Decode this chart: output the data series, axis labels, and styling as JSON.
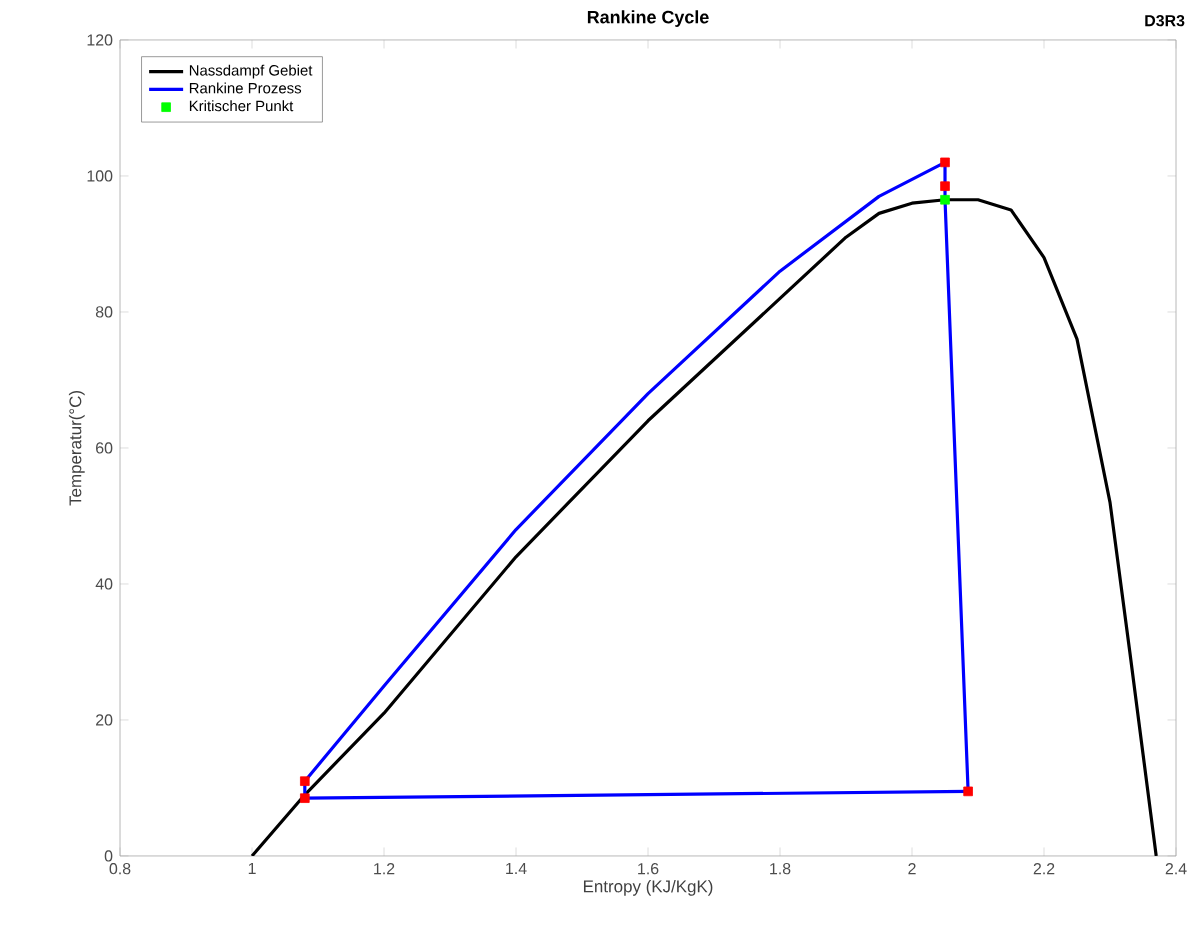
{
  "chart_data": {
    "type": "line",
    "title": "Rankine Cycle",
    "xlabel": "Entropy (KJ/KgK)",
    "ylabel": "Temperatur(°C)",
    "annotations": [
      "D3R3"
    ],
    "xlim": [
      0.8,
      2.4
    ],
    "ylim": [
      0,
      120
    ],
    "xticks": [
      0.8,
      1,
      1.2,
      1.4,
      1.6,
      1.8,
      2,
      2.2,
      2.4
    ],
    "yticks": [
      0,
      20,
      40,
      60,
      80,
      100,
      120
    ],
    "legend": "top left",
    "grid": false,
    "marker": "none",
    "line_style": "solid",
    "series": [
      {
        "name": "Nassdampf Gebiet",
        "color": "#000000",
        "x": [
          1.0,
          1.08,
          1.2,
          1.4,
          1.6,
          1.8,
          1.9,
          1.95,
          2.0,
          2.05,
          2.1,
          2.15,
          2.2,
          2.25,
          2.3,
          2.33,
          2.35,
          2.37
        ],
        "values": [
          0,
          9,
          21,
          44,
          64,
          82,
          91,
          94.5,
          96,
          96.5,
          96.5,
          95,
          88,
          76,
          52,
          30,
          15,
          0
        ]
      },
      {
        "name": "Rankine Prozess",
        "color": "#0000ff",
        "x": [
          1.08,
          1.08,
          1.2,
          1.4,
          1.6,
          1.8,
          1.95,
          2.05,
          2.05,
          2.085
        ],
        "values": [
          8.5,
          11,
          25,
          48,
          68,
          86,
          97,
          102,
          96.5,
          9.5
        ]
      },
      {
        "color": "#0000ff",
        "x": [
          1.08,
          2.085
        ],
        "values": [
          8.5,
          9.5
        ]
      },
      {
        "type": "scatter",
        "marker": "square",
        "color": "#ff0000",
        "x": [
          1.08,
          1.08,
          2.05,
          2.05,
          2.085
        ],
        "values": [
          11,
          8.5,
          102,
          98.5,
          9.5
        ]
      },
      {
        "name": "Kritischer Punkt",
        "type": "scatter",
        "marker": "square",
        "color": "#00ff00",
        "x": [
          2.05
        ],
        "values": [
          96.5
        ]
      }
    ]
  }
}
